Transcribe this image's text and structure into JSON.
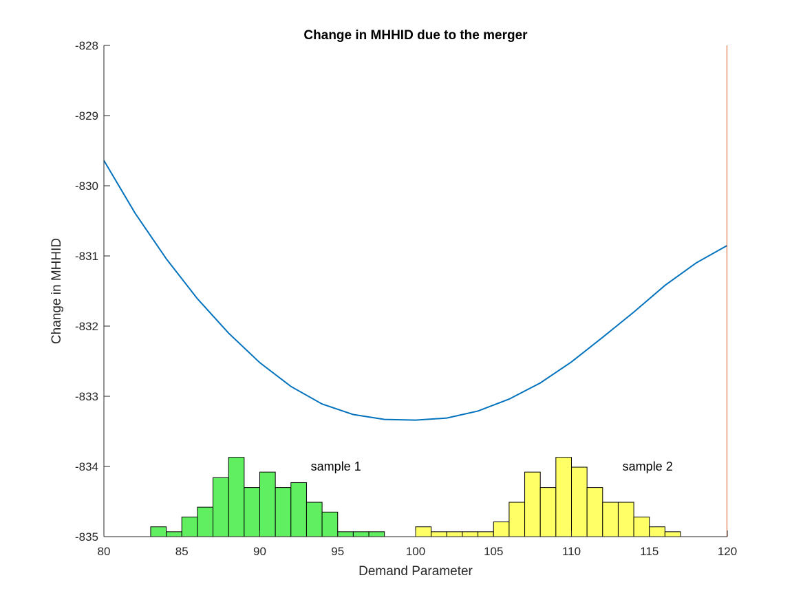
{
  "chart_data": {
    "type": "line",
    "title": "Change in MHHID due to the merger",
    "xlabel": "Demand Parameter",
    "ylabel": "Change in MHHID",
    "xlim": [
      80,
      120
    ],
    "ylim": [
      -835,
      -828
    ],
    "x_ticks": [
      "80",
      "85",
      "90",
      "95",
      "100",
      "105",
      "110",
      "115",
      "120"
    ],
    "y_ticks": [
      "-828",
      "-829",
      "-830",
      "-831",
      "-832",
      "-833",
      "-834",
      "-835"
    ],
    "grid": false,
    "curve": {
      "color": "#0072BD",
      "x": [
        80,
        82,
        84,
        86,
        88,
        90,
        92,
        94,
        96,
        98,
        100,
        102,
        104,
        106,
        108,
        110,
        112,
        114,
        116,
        118,
        120
      ],
      "y": [
        -829.64,
        -830.39,
        -831.04,
        -831.61,
        -832.1,
        -832.52,
        -832.86,
        -833.11,
        -833.26,
        -833.33,
        -833.34,
        -833.31,
        -833.21,
        -833.04,
        -832.81,
        -832.51,
        -832.16,
        -831.8,
        -831.42,
        -831.1,
        -830.85
      ]
    },
    "histograms": [
      {
        "label": "sample 1",
        "color": "#60ef60",
        "bin_width": 1,
        "bin_starts": [
          83,
          84,
          85,
          86,
          87,
          88,
          89,
          90,
          91,
          92,
          93,
          94,
          95,
          96,
          97
        ],
        "values": [
          -834.86,
          -834.93,
          -834.72,
          -834.58,
          -834.16,
          -833.87,
          -834.3,
          -834.08,
          -834.3,
          -834.23,
          -834.51,
          -834.65,
          -834.93,
          -834.93,
          -834.93
        ],
        "label_pos": [
          96.5,
          -834
        ]
      },
      {
        "label": "sample 2",
        "color": "#ffff66",
        "bin_width": 1,
        "bin_starts": [
          100,
          101,
          102,
          103,
          104,
          105,
          106,
          107,
          108,
          109,
          110,
          111,
          112,
          113,
          114,
          115,
          116
        ],
        "values": [
          -834.86,
          -834.93,
          -834.93,
          -834.93,
          -834.93,
          -834.79,
          -834.51,
          -834.08,
          -834.3,
          -833.87,
          -834.01,
          -834.3,
          -834.51,
          -834.51,
          -834.72,
          -834.86,
          -834.93
        ],
        "label_pos": [
          116.5,
          -834
        ]
      }
    ]
  }
}
